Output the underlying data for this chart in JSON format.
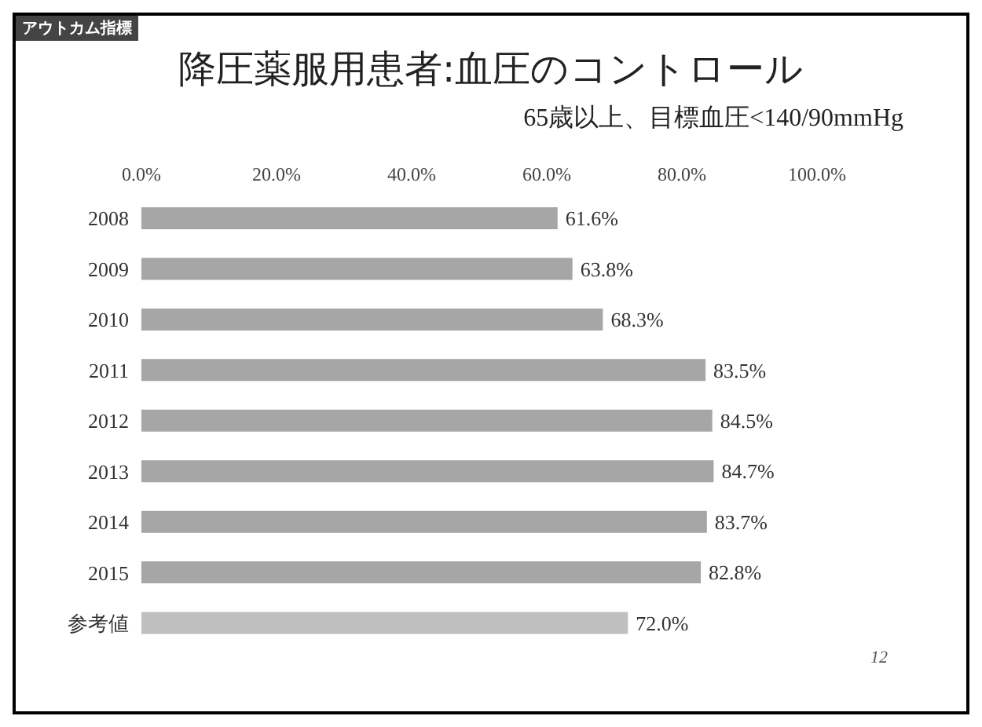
{
  "chart_data": {
    "type": "bar",
    "orientation": "horizontal",
    "title": "降圧薬服用患者:血圧のコントロール",
    "subtitle": "65歳以上、目標血圧<140/90mmHg",
    "categories": [
      "2008",
      "2009",
      "2010",
      "2011",
      "2012",
      "2013",
      "2014",
      "2015",
      "参考値"
    ],
    "values": [
      61.6,
      63.8,
      68.3,
      83.5,
      84.5,
      84.7,
      83.7,
      82.8,
      72.0
    ],
    "value_labels": [
      "61.6%",
      "63.8%",
      "68.3%",
      "83.5%",
      "84.5%",
      "84.7%",
      "83.7%",
      "82.8%",
      "72.0%"
    ],
    "colors": [
      "#a6a6a6",
      "#a6a6a6",
      "#a6a6a6",
      "#a6a6a6",
      "#a6a6a6",
      "#a6a6a6",
      "#a6a6a6",
      "#a6a6a6",
      "#bfbfbf"
    ],
    "xlim": [
      0,
      100
    ],
    "xticks": [
      {
        "value": 0,
        "label": "0.0%"
      },
      {
        "value": 20,
        "label": "20.0%"
      },
      {
        "value": 40,
        "label": "40.0%"
      },
      {
        "value": 60,
        "label": "60.0%"
      },
      {
        "value": 80,
        "label": "80.0%"
      },
      {
        "value": 100,
        "label": "100.0%"
      }
    ],
    "annotations": [
      "アウトカム指標",
      "12"
    ]
  }
}
